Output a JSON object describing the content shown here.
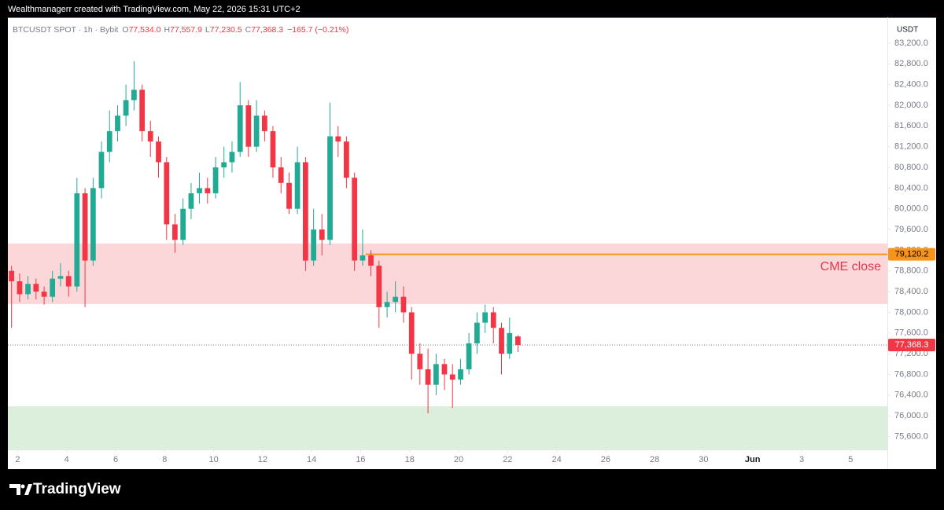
{
  "chart_data": {
    "type": "candlestick",
    "header": "Wealthmanagerr created with TradingView.com, May 22, 2026 15:31 UTC+2",
    "brand": "TradingView",
    "currency": "USDT",
    "legend": {
      "symbol": "BTCUSDT SPOT · 1h · Bybit",
      "items": [
        {
          "key": "O",
          "value": "77,534.0"
        },
        {
          "key": "H",
          "value": "77,557.9"
        },
        {
          "key": "L",
          "value": "77,230.5"
        },
        {
          "key": "C",
          "value": "77,368.3"
        }
      ],
      "change": "−165.7 (−0.21%)"
    },
    "up_color": "#22ab94",
    "down_color": "#f23645",
    "x": [
      1.75,
      2.08,
      2.42,
      2.75,
      3.08,
      3.42,
      3.75,
      4.08,
      4.42,
      4.75,
      5.08,
      5.42,
      5.75,
      6.08,
      6.42,
      6.75,
      7.08,
      7.42,
      7.75,
      8.08,
      8.42,
      8.75,
      9.08,
      9.42,
      9.75,
      10.08,
      10.42,
      10.75,
      11.08,
      11.42,
      11.75,
      12.08,
      12.42,
      12.75,
      13.08,
      13.42,
      13.75,
      14.08,
      14.42,
      14.75,
      15.08,
      15.42,
      15.75,
      16.08,
      16.42,
      16.75,
      17.08,
      17.42,
      17.75,
      18.08,
      18.42,
      18.75,
      19.08,
      19.42,
      19.75,
      20.08,
      20.42,
      20.75,
      21.08,
      21.42,
      21.75,
      22.08,
      22.42
    ],
    "open": [
      78800,
      78600,
      78350,
      78550,
      78400,
      78300,
      78650,
      78700,
      78500,
      80300,
      79000,
      80400,
      81100,
      81500,
      81800,
      82100,
      82300,
      81500,
      81300,
      80900,
      79700,
      79400,
      80000,
      80300,
      80400,
      80300,
      80800,
      80900,
      81100,
      82000,
      81200,
      81800,
      81500,
      80800,
      80500,
      80000,
      80900,
      79000,
      79600,
      79400,
      81400,
      81300,
      80600,
      79000,
      79100,
      78900,
      78100,
      78200,
      78300,
      78000,
      77200,
      76900,
      76600,
      77000,
      76800,
      76700,
      76900,
      77400,
      77800,
      78000,
      77700,
      77200,
      77534
    ],
    "high": [
      78900,
      78750,
      78700,
      78650,
      78500,
      78800,
      78950,
      78800,
      80600,
      80400,
      80600,
      81300,
      81900,
      82000,
      82400,
      82850,
      82400,
      81700,
      81400,
      81000,
      79900,
      80200,
      80500,
      80700,
      80600,
      81000,
      81200,
      81300,
      82450,
      82100,
      82100,
      81900,
      81600,
      81000,
      80700,
      81200,
      81000,
      80000,
      79900,
      82050,
      81600,
      81400,
      80700,
      79600,
      79200,
      79000,
      78400,
      78600,
      78500,
      78100,
      77400,
      77300,
      77200,
      77100,
      77000,
      77100,
      77600,
      78000,
      78150,
      78100,
      77800,
      77900,
      77557.9
    ],
    "low": [
      77700,
      78200,
      78250,
      78250,
      78150,
      78200,
      78500,
      78300,
      78400,
      78100,
      78900,
      80200,
      80900,
      81300,
      81600,
      81900,
      81300,
      81000,
      80600,
      79400,
      79150,
      79300,
      79800,
      80100,
      80100,
      80200,
      80600,
      80700,
      81000,
      81000,
      81100,
      81300,
      80600,
      80300,
      79900,
      79900,
      78800,
      78900,
      79100,
      79300,
      81000,
      80400,
      78800,
      78900,
      78700,
      77700,
      77900,
      78000,
      77800,
      76700,
      76600,
      76050,
      76400,
      76500,
      76150,
      76600,
      76800,
      77200,
      77600,
      77400,
      76800,
      77100,
      77230.5
    ],
    "close": [
      78600,
      78350,
      78550,
      78400,
      78300,
      78650,
      78700,
      78500,
      80300,
      79000,
      80400,
      81100,
      81500,
      81800,
      82100,
      82300,
      81500,
      81300,
      80900,
      79700,
      79400,
      80000,
      80300,
      80400,
      80300,
      80800,
      80900,
      81100,
      82000,
      81200,
      81800,
      81500,
      80800,
      80500,
      80000,
      80900,
      79000,
      79600,
      79400,
      81400,
      81300,
      80600,
      79000,
      79100,
      78900,
      78100,
      78200,
      78300,
      78000,
      77200,
      76900,
      76600,
      77000,
      76800,
      76700,
      76900,
      77400,
      77800,
      78000,
      77700,
      77200,
      77600,
      77368.3
    ],
    "zones": [
      {
        "from": 78160,
        "to": 79330,
        "color": "rgba(242,54,69,0.2)"
      },
      {
        "from": 75350,
        "to": 76185,
        "color": "rgba(76,175,80,0.2)"
      }
    ],
    "cme_line": {
      "value": 79120.2,
      "label": "79,120.2",
      "start": 16.2,
      "color": "#f7931a",
      "text": "CME close",
      "text_color": "#e0394a"
    },
    "last_price": {
      "value": 77368.3,
      "label": "77,368.3",
      "color": "#f23645"
    },
    "xlim": [
      1.6,
      37.5
    ],
    "xticks": [
      2,
      4,
      6,
      8,
      10,
      12,
      14,
      16,
      18,
      20,
      22,
      24,
      26,
      28,
      30,
      {
        "value": 32,
        "label": "Jun"
      },
      {
        "value": 34,
        "label": "3"
      },
      {
        "value": 36,
        "label": "5"
      }
    ],
    "ylim": [
      75350,
      83700
    ],
    "yticks": [
      {
        "value": 75600,
        "label": "75,600.0"
      },
      {
        "value": 76000,
        "label": "76,000.0"
      },
      {
        "value": 76400,
        "label": "76,400.0"
      },
      {
        "value": 76800,
        "label": "76,800.0"
      },
      {
        "value": 77200,
        "label": "77,200.0"
      },
      {
        "value": 77600,
        "label": "77,600.0"
      },
      {
        "value": 78000,
        "label": "78,000.0"
      },
      {
        "value": 78400,
        "label": "78,400.0"
      },
      {
        "value": 78800,
        "label": "78,800.0"
      },
      {
        "value": 79200,
        "label": "79,200.0"
      },
      {
        "value": 79600,
        "label": "79,600.0"
      },
      {
        "value": 80000,
        "label": "80,000.0"
      },
      {
        "value": 80400,
        "label": "80,400.0"
      },
      {
        "value": 80800,
        "label": "80,800.0"
      },
      {
        "value": 81200,
        "label": "81,200.0"
      },
      {
        "value": 81600,
        "label": "81,600.0"
      },
      {
        "value": 82000,
        "label": "82,000.0"
      },
      {
        "value": 82400,
        "label": "82,400.0"
      },
      {
        "value": 82800,
        "label": "82,800.0"
      },
      {
        "value": 83200,
        "label": "83,200.0"
      }
    ],
    "grid": false
  }
}
